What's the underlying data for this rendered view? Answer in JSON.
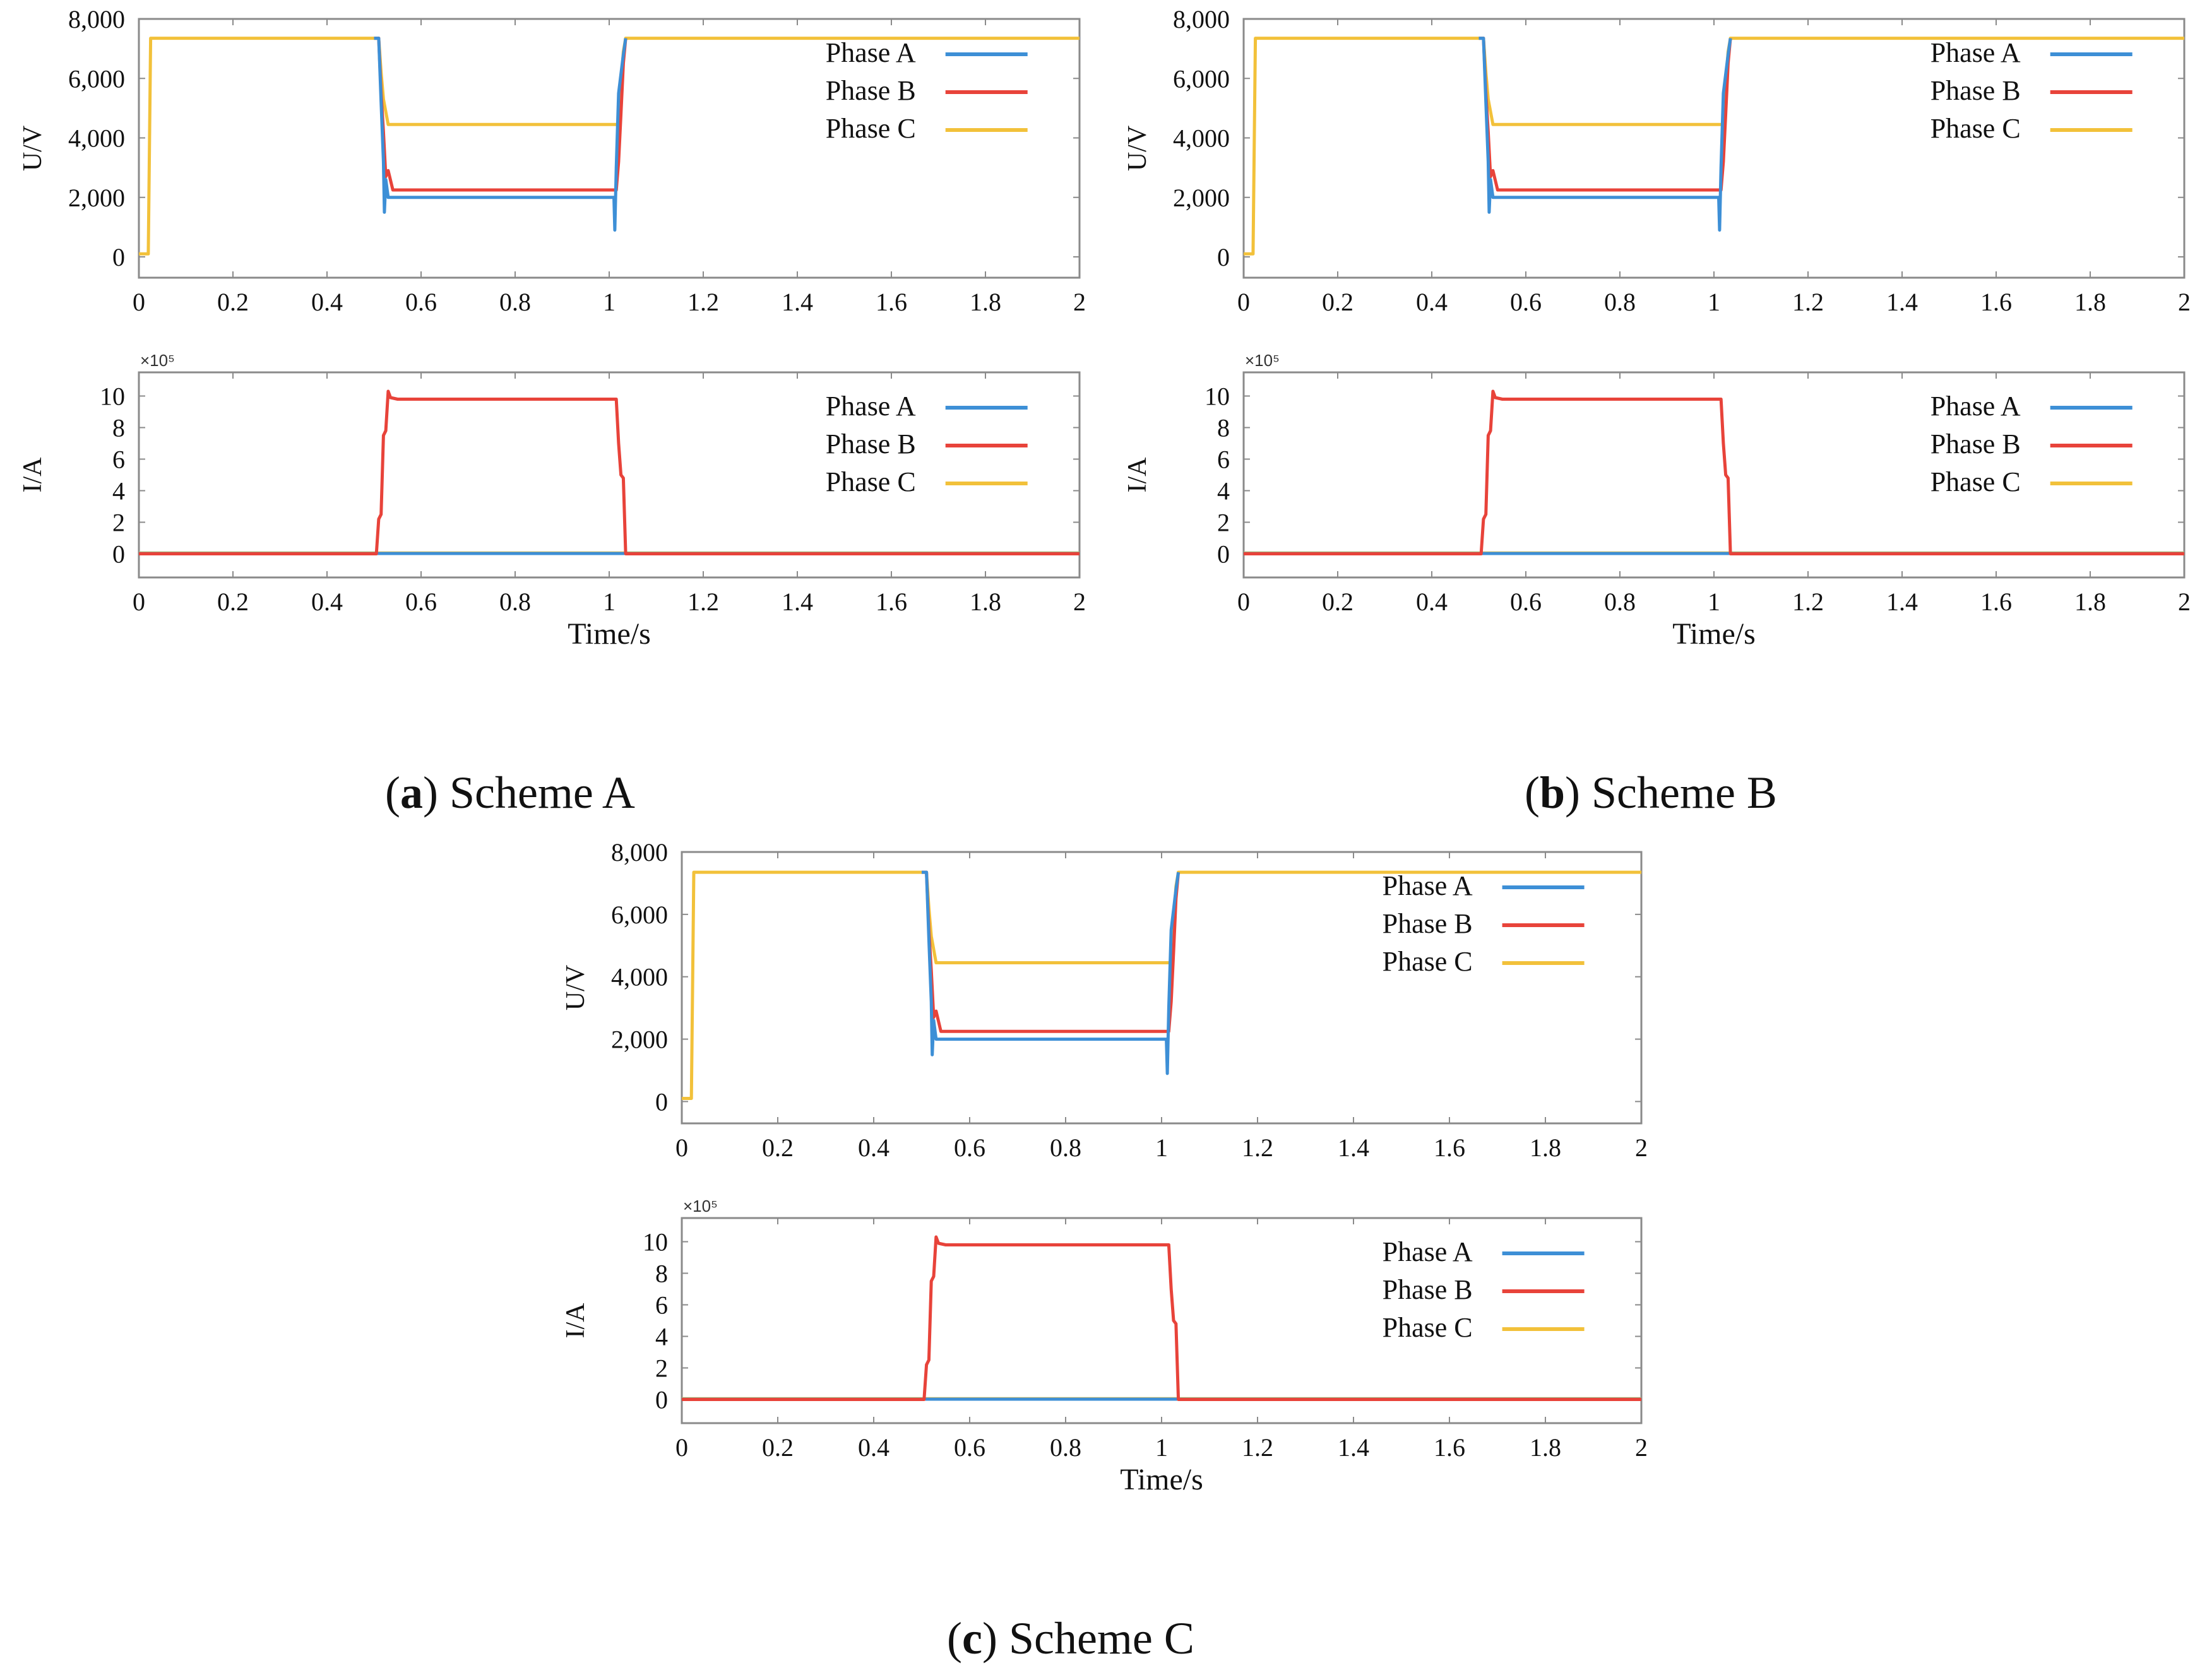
{
  "colors": {
    "phase_a": "#3d8fd6",
    "phase_b": "#e8433a",
    "phase_c": "#f2c13a",
    "axis": "#555555",
    "grid": "#ffffff"
  },
  "legend_labels": [
    "Phase A",
    "Phase B",
    "Phase C"
  ],
  "chart_data": [
    {
      "id": "scheme-a",
      "caption_letter": "a",
      "caption_text": "Scheme A",
      "voltage": {
        "type": "line",
        "ylabel": "U/V",
        "xlim": [
          0,
          2
        ],
        "ylim": [
          -700,
          8000
        ],
        "yticks": [
          "0",
          "2,000",
          "4,000",
          "6,000",
          "8,000"
        ],
        "ytick_values": [
          0,
          2000,
          4000,
          6000,
          8000
        ],
        "xticks": [
          "0",
          "0.2",
          "0.4",
          "0.6",
          "0.8",
          "1",
          "1.2",
          "1.4",
          "1.6",
          "1.8",
          "2"
        ],
        "series": [
          {
            "name": "Phase C",
            "x": [
              0,
              0.02,
              0.025,
              0.5,
              0.51,
              0.515,
              0.52,
              0.53,
              1.02,
              1.025,
              1.03,
              1.035,
              2
            ],
            "y": [
              100,
              100,
              7350,
              7350,
              7350,
              6200,
              5300,
              4450,
              4450,
              5700,
              6900,
              7350,
              7350
            ]
          },
          {
            "name": "Phase B",
            "x": [
              0.5,
              0.51,
              0.515,
              0.52,
              0.525,
              0.53,
              0.54,
              1.015,
              1.02,
              1.025,
              1.03,
              1.035
            ],
            "y": [
              7350,
              7350,
              5500,
              4200,
              2700,
              2900,
              2250,
              2250,
              3200,
              4800,
              6500,
              7350
            ]
          },
          {
            "name": "Phase A",
            "x": [
              0.5,
              0.51,
              0.515,
              0.52,
              0.522,
              0.525,
              0.53,
              0.54,
              1.01,
              1.012,
              1.015,
              1.02,
              1.03,
              1.035
            ],
            "y": [
              7350,
              7350,
              5200,
              3200,
              1500,
              2600,
              2000,
              2000,
              2000,
              900,
              3000,
              5500,
              6800,
              7350
            ]
          }
        ]
      },
      "current": {
        "type": "line",
        "ylabel": "I/A",
        "multiplier": "×10⁵",
        "xlim": [
          0,
          2
        ],
        "ylim": [
          -1.5,
          11.5
        ],
        "yticks": [
          "0",
          "2",
          "4",
          "6",
          "8",
          "10"
        ],
        "ytick_values": [
          0,
          2,
          4,
          6,
          8,
          10
        ],
        "xticks": [
          "0",
          "0.2",
          "0.4",
          "0.6",
          "0.8",
          "1",
          "1.2",
          "1.4",
          "1.6",
          "1.8",
          "2"
        ],
        "xlabel": "Time/s",
        "series": [
          {
            "name": "Phase C",
            "x": [
              0,
              2
            ],
            "y": [
              0.05,
              0.05
            ]
          },
          {
            "name": "Phase A",
            "x": [
              0,
              2
            ],
            "y": [
              0.02,
              0.02
            ]
          },
          {
            "name": "Phase B",
            "x": [
              0,
              0.505,
              0.51,
              0.515,
              0.52,
              0.525,
              0.53,
              0.535,
              0.55,
              1.015,
              1.02,
              1.025,
              1.03,
              1.035,
              2
            ],
            "y": [
              0,
              0,
              2.2,
              2.5,
              7.5,
              7.8,
              10.3,
              9.9,
              9.8,
              9.8,
              7.0,
              5.0,
              4.8,
              0,
              0
            ]
          }
        ]
      }
    },
    {
      "id": "scheme-b",
      "caption_letter": "b",
      "caption_text": "Scheme B",
      "voltage": {
        "type": "line",
        "ylabel": "U/V",
        "xlim": [
          0,
          2
        ],
        "ylim": [
          -700,
          8000
        ],
        "yticks": [
          "0",
          "2,000",
          "4,000",
          "6,000",
          "8,000"
        ],
        "ytick_values": [
          0,
          2000,
          4000,
          6000,
          8000
        ],
        "xticks": [
          "0",
          "0.2",
          "0.4",
          "0.6",
          "0.8",
          "1",
          "1.2",
          "1.4",
          "1.6",
          "1.8",
          "2"
        ],
        "series": [
          {
            "name": "Phase C",
            "x": [
              0,
              0.02,
              0.025,
              0.5,
              0.51,
              0.515,
              0.52,
              0.53,
              1.02,
              1.025,
              1.03,
              1.035,
              2
            ],
            "y": [
              100,
              100,
              7350,
              7350,
              7350,
              6200,
              5300,
              4450,
              4450,
              5700,
              6900,
              7350,
              7350
            ]
          },
          {
            "name": "Phase B",
            "x": [
              0.5,
              0.51,
              0.515,
              0.52,
              0.525,
              0.53,
              0.54,
              1.015,
              1.02,
              1.025,
              1.03,
              1.035
            ],
            "y": [
              7350,
              7350,
              5500,
              4200,
              2700,
              2900,
              2250,
              2250,
              3200,
              4800,
              6500,
              7350
            ]
          },
          {
            "name": "Phase A",
            "x": [
              0.5,
              0.51,
              0.515,
              0.52,
              0.522,
              0.525,
              0.53,
              0.54,
              1.01,
              1.012,
              1.015,
              1.02,
              1.03,
              1.035
            ],
            "y": [
              7350,
              7350,
              5200,
              3200,
              1500,
              2600,
              2000,
              2000,
              2000,
              900,
              3000,
              5500,
              6800,
              7350
            ]
          }
        ]
      },
      "current": {
        "type": "line",
        "ylabel": "I/A",
        "multiplier": "×10⁵",
        "xlim": [
          0,
          2
        ],
        "ylim": [
          -1.5,
          11.5
        ],
        "yticks": [
          "0",
          "2",
          "4",
          "6",
          "8",
          "10"
        ],
        "ytick_values": [
          0,
          2,
          4,
          6,
          8,
          10
        ],
        "xticks": [
          "0",
          "0.2",
          "0.4",
          "0.6",
          "0.8",
          "1",
          "1.2",
          "1.4",
          "1.6",
          "1.8",
          "2"
        ],
        "xlabel": "Time/s",
        "series": [
          {
            "name": "Phase C",
            "x": [
              0,
              2
            ],
            "y": [
              0.05,
              0.05
            ]
          },
          {
            "name": "Phase A",
            "x": [
              0,
              2
            ],
            "y": [
              0.02,
              0.02
            ]
          },
          {
            "name": "Phase B",
            "x": [
              0,
              0.505,
              0.51,
              0.515,
              0.52,
              0.525,
              0.53,
              0.535,
              0.55,
              1.015,
              1.02,
              1.025,
              1.03,
              1.035,
              2
            ],
            "y": [
              0,
              0,
              2.2,
              2.5,
              7.5,
              7.8,
              10.3,
              9.9,
              9.8,
              9.8,
              7.0,
              5.0,
              4.8,
              0,
              0
            ]
          }
        ]
      }
    },
    {
      "id": "scheme-c",
      "caption_letter": "c",
      "caption_text": "Scheme C",
      "voltage": {
        "type": "line",
        "ylabel": "U/V",
        "xlim": [
          0,
          2
        ],
        "ylim": [
          -700,
          8000
        ],
        "yticks": [
          "0",
          "2,000",
          "4,000",
          "6,000",
          "8,000"
        ],
        "ytick_values": [
          0,
          2000,
          4000,
          6000,
          8000
        ],
        "xticks": [
          "0",
          "0.2",
          "0.4",
          "0.6",
          "0.8",
          "1",
          "1.2",
          "1.4",
          "1.6",
          "1.8",
          "2"
        ],
        "series": [
          {
            "name": "Phase C",
            "x": [
              0,
              0.02,
              0.025,
              0.5,
              0.51,
              0.515,
              0.52,
              0.53,
              1.02,
              1.025,
              1.03,
              1.035,
              2
            ],
            "y": [
              100,
              100,
              7350,
              7350,
              7350,
              6200,
              5300,
              4450,
              4450,
              5700,
              6900,
              7350,
              7350
            ]
          },
          {
            "name": "Phase B",
            "x": [
              0.5,
              0.51,
              0.515,
              0.52,
              0.525,
              0.53,
              0.54,
              1.015,
              1.02,
              1.025,
              1.03,
              1.035
            ],
            "y": [
              7350,
              7350,
              5500,
              4200,
              2700,
              2900,
              2250,
              2250,
              3200,
              4800,
              6500,
              7350
            ]
          },
          {
            "name": "Phase A",
            "x": [
              0.5,
              0.51,
              0.515,
              0.52,
              0.522,
              0.525,
              0.53,
              0.54,
              1.01,
              1.012,
              1.015,
              1.02,
              1.03,
              1.035
            ],
            "y": [
              7350,
              7350,
              5200,
              3200,
              1500,
              2600,
              2000,
              2000,
              2000,
              900,
              3000,
              5500,
              6800,
              7350
            ]
          }
        ]
      },
      "current": {
        "type": "line",
        "ylabel": "I/A",
        "multiplier": "×10⁵",
        "xlim": [
          0,
          2
        ],
        "ylim": [
          -1.5,
          11.5
        ],
        "yticks": [
          "0",
          "2",
          "4",
          "6",
          "8",
          "10"
        ],
        "ytick_values": [
          0,
          2,
          4,
          6,
          8,
          10
        ],
        "xticks": [
          "0",
          "0.2",
          "0.4",
          "0.6",
          "0.8",
          "1",
          "1.2",
          "1.4",
          "1.6",
          "1.8",
          "2"
        ],
        "xlabel": "Time/s",
        "series": [
          {
            "name": "Phase C",
            "x": [
              0,
              2
            ],
            "y": [
              0.05,
              0.05
            ]
          },
          {
            "name": "Phase A",
            "x": [
              0,
              2
            ],
            "y": [
              0.02,
              0.02
            ]
          },
          {
            "name": "Phase B",
            "x": [
              0,
              0.505,
              0.51,
              0.515,
              0.52,
              0.525,
              0.53,
              0.535,
              0.55,
              1.015,
              1.02,
              1.025,
              1.03,
              1.035,
              2
            ],
            "y": [
              0,
              0,
              2.2,
              2.5,
              7.5,
              7.8,
              10.3,
              9.9,
              9.8,
              9.8,
              7.0,
              5.0,
              4.8,
              0,
              0
            ]
          }
        ]
      }
    }
  ]
}
